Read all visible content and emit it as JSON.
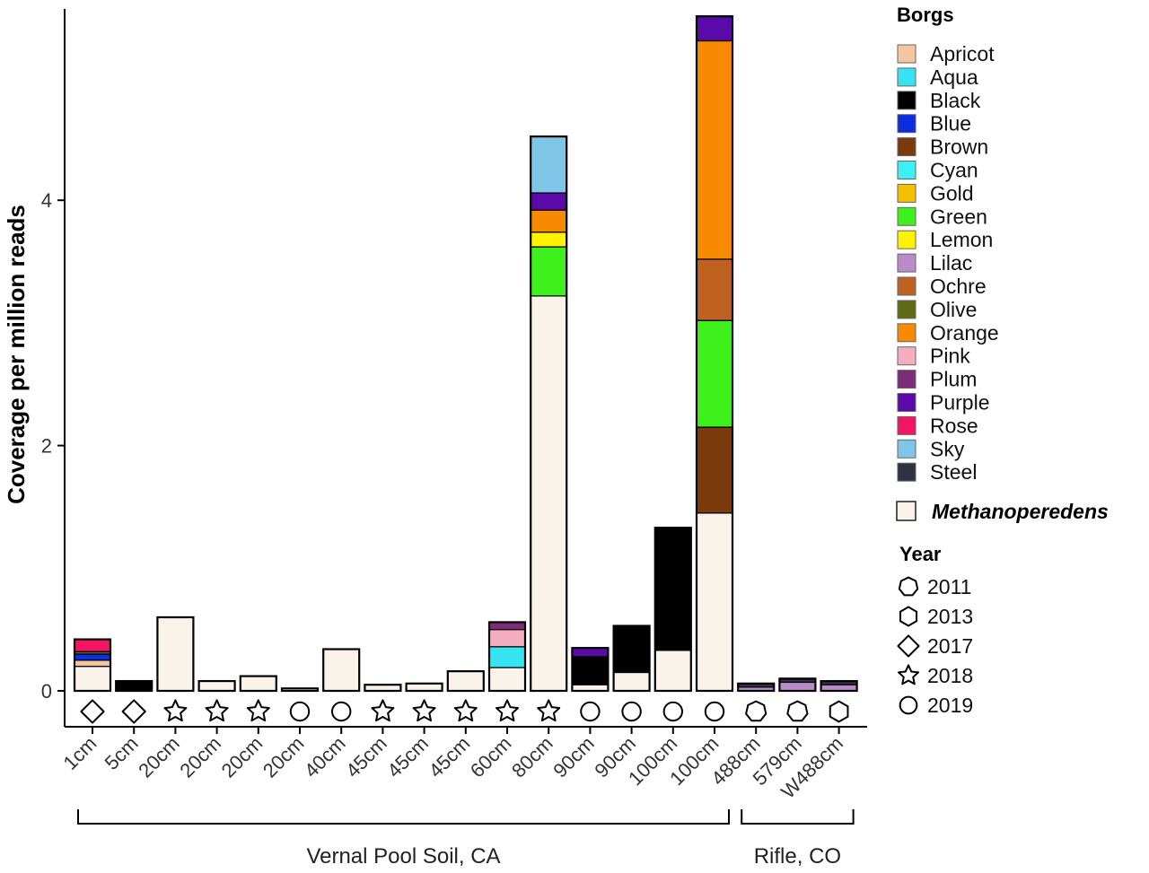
{
  "chart_data": {
    "type": "bar",
    "stacked": true,
    "ylabel": "Coverage per million reads",
    "xlabel": "",
    "ylim": [
      -0.1,
      5.6
    ],
    "yticks": [
      0,
      2,
      4
    ],
    "grid": false,
    "legend_position": "right",
    "categories": [
      "1cm",
      "5cm",
      "20cm",
      "20cm",
      "20cm",
      "20cm",
      "40cm",
      "45cm",
      "45cm",
      "45cm",
      "60cm",
      "80cm",
      "90cm",
      "90cm",
      "100cm",
      "100cm",
      "488cm",
      "579cm",
      "W488cm"
    ],
    "years": [
      "2017",
      "2017",
      "2018",
      "2018",
      "2018",
      "2019",
      "2019",
      "2018",
      "2018",
      "2018",
      "2018",
      "2018",
      "2019",
      "2019",
      "2019",
      "2019",
      "2011",
      "2011",
      "2013"
    ],
    "groups": [
      {
        "label": "Vernal Pool Soil, CA",
        "start": 0,
        "end": 15
      },
      {
        "label": "Rifle, CO",
        "start": 16,
        "end": 18
      }
    ],
    "series": [
      {
        "name": "Methanoperedens",
        "color": "#faf3ea",
        "values": [
          0.2,
          0.0,
          0.6,
          0.08,
          0.12,
          0.02,
          0.34,
          0.05,
          0.06,
          0.16,
          0.19,
          3.22,
          0.05,
          0.15,
          0.33,
          1.45,
          0.0,
          0.0,
          0.0
        ]
      },
      {
        "name": "Apricot",
        "color": "#f4c6a0",
        "values": [
          0.05,
          0,
          0,
          0,
          0,
          0,
          0,
          0,
          0,
          0,
          0,
          0,
          0,
          0,
          0,
          0,
          0,
          0,
          0
        ]
      },
      {
        "name": "Aqua",
        "color": "#36e3f0",
        "values": [
          0,
          0,
          0,
          0,
          0,
          0,
          0,
          0,
          0,
          0,
          0.17,
          0,
          0,
          0,
          0,
          0,
          0,
          0,
          0
        ]
      },
      {
        "name": "Black",
        "color": "#000000",
        "values": [
          0,
          0.08,
          0,
          0,
          0,
          0,
          0,
          0,
          0,
          0,
          0,
          0,
          0.23,
          0.38,
          1.0,
          0,
          0,
          0,
          0
        ]
      },
      {
        "name": "Blue",
        "color": "#0a2de0",
        "values": [
          0.05,
          0,
          0,
          0,
          0,
          0,
          0,
          0,
          0,
          0,
          0,
          0,
          0,
          0,
          0,
          0,
          0,
          0,
          0
        ]
      },
      {
        "name": "Brown",
        "color": "#7b3a0c",
        "values": [
          0,
          0,
          0,
          0,
          0,
          0,
          0,
          0,
          0,
          0,
          0,
          0,
          0,
          0,
          0,
          0.7,
          0,
          0,
          0
        ]
      },
      {
        "name": "Cyan",
        "color": "#3cf0f5",
        "values": [
          0,
          0,
          0,
          0,
          0,
          0,
          0,
          0,
          0,
          0,
          0,
          0,
          0,
          0,
          0,
          0,
          0,
          0,
          0
        ]
      },
      {
        "name": "Gold",
        "color": "#f5c000",
        "values": [
          0,
          0,
          0,
          0,
          0,
          0,
          0,
          0,
          0,
          0,
          0,
          0,
          0,
          0,
          0,
          0,
          0,
          0,
          0
        ]
      },
      {
        "name": "Green",
        "color": "#3ef01c",
        "values": [
          0,
          0,
          0,
          0,
          0,
          0,
          0,
          0,
          0,
          0,
          0,
          0.4,
          0,
          0,
          0,
          0.87,
          0,
          0,
          0
        ]
      },
      {
        "name": "Lemon",
        "color": "#fff200",
        "values": [
          0,
          0,
          0,
          0,
          0,
          0,
          0,
          0,
          0,
          0,
          0,
          0.12,
          0,
          0,
          0,
          0,
          0,
          0,
          0
        ]
      },
      {
        "name": "Lilac",
        "color": "#b98cc9",
        "values": [
          0,
          0,
          0,
          0,
          0,
          0,
          0,
          0,
          0,
          0,
          0,
          0,
          0,
          0,
          0,
          0,
          0.03,
          0.07,
          0.05
        ]
      },
      {
        "name": "Ochre",
        "color": "#bf6120",
        "values": [
          0,
          0,
          0,
          0,
          0,
          0,
          0,
          0,
          0,
          0,
          0,
          0,
          0,
          0,
          0,
          0.5,
          0,
          0,
          0
        ]
      },
      {
        "name": "Olive",
        "color": "#5f6b12",
        "values": [
          0.02,
          0,
          0,
          0,
          0,
          0,
          0,
          0,
          0,
          0,
          0,
          0,
          0,
          0,
          0,
          0,
          0,
          0,
          0
        ]
      },
      {
        "name": "Orange",
        "color": "#f78a00",
        "values": [
          0,
          0,
          0,
          0,
          0,
          0,
          0,
          0,
          0,
          0,
          0,
          0.18,
          0,
          0,
          0,
          1.78,
          0,
          0,
          0
        ]
      },
      {
        "name": "Pink",
        "color": "#f4aec0",
        "values": [
          0,
          0,
          0,
          0,
          0,
          0,
          0,
          0,
          0,
          0,
          0.14,
          0,
          0,
          0,
          0,
          0,
          0,
          0,
          0
        ]
      },
      {
        "name": "Plum",
        "color": "#7d2d78",
        "values": [
          0,
          0,
          0,
          0,
          0,
          0,
          0,
          0,
          0,
          0,
          0.06,
          0,
          0,
          0,
          0,
          0,
          0,
          0,
          0
        ]
      },
      {
        "name": "Purple",
        "color": "#5a0aa8",
        "values": [
          0,
          0,
          0,
          0,
          0,
          0,
          0,
          0,
          0,
          0,
          0,
          0.14,
          0.07,
          0,
          0,
          0.2,
          0,
          0,
          0
        ]
      },
      {
        "name": "Rose",
        "color": "#f21566",
        "values": [
          0.1,
          0,
          0,
          0,
          0,
          0,
          0,
          0,
          0,
          0,
          0,
          0,
          0,
          0,
          0,
          0,
          0,
          0,
          0
        ]
      },
      {
        "name": "Sky",
        "color": "#7fc5e8",
        "values": [
          0,
          0,
          0,
          0,
          0,
          0,
          0,
          0,
          0,
          0,
          0,
          0.46,
          0,
          0,
          0,
          0,
          0,
          0,
          0
        ]
      },
      {
        "name": "Steel",
        "color": "#2f3240",
        "values": [
          0,
          0,
          0,
          0,
          0,
          0,
          0,
          0,
          0,
          0,
          0,
          0,
          0,
          0,
          0,
          0,
          0.03,
          0.03,
          0.03
        ]
      }
    ]
  },
  "legend": {
    "borgs_title": "Borgs",
    "borgs": [
      "Apricot",
      "Aqua",
      "Black",
      "Blue",
      "Brown",
      "Cyan",
      "Gold",
      "Green",
      "Lemon",
      "Lilac",
      "Ochre",
      "Olive",
      "Orange",
      "Pink",
      "Plum",
      "Purple",
      "Rose",
      "Sky",
      "Steel"
    ],
    "host_label": "Methanoperedens",
    "year_title": "Year",
    "years": [
      {
        "label": "2011",
        "shape": "heptagon"
      },
      {
        "label": "2013",
        "shape": "hexagon"
      },
      {
        "label": "2017",
        "shape": "diamond"
      },
      {
        "label": "2018",
        "shape": "star"
      },
      {
        "label": "2019",
        "shape": "circle"
      }
    ]
  }
}
